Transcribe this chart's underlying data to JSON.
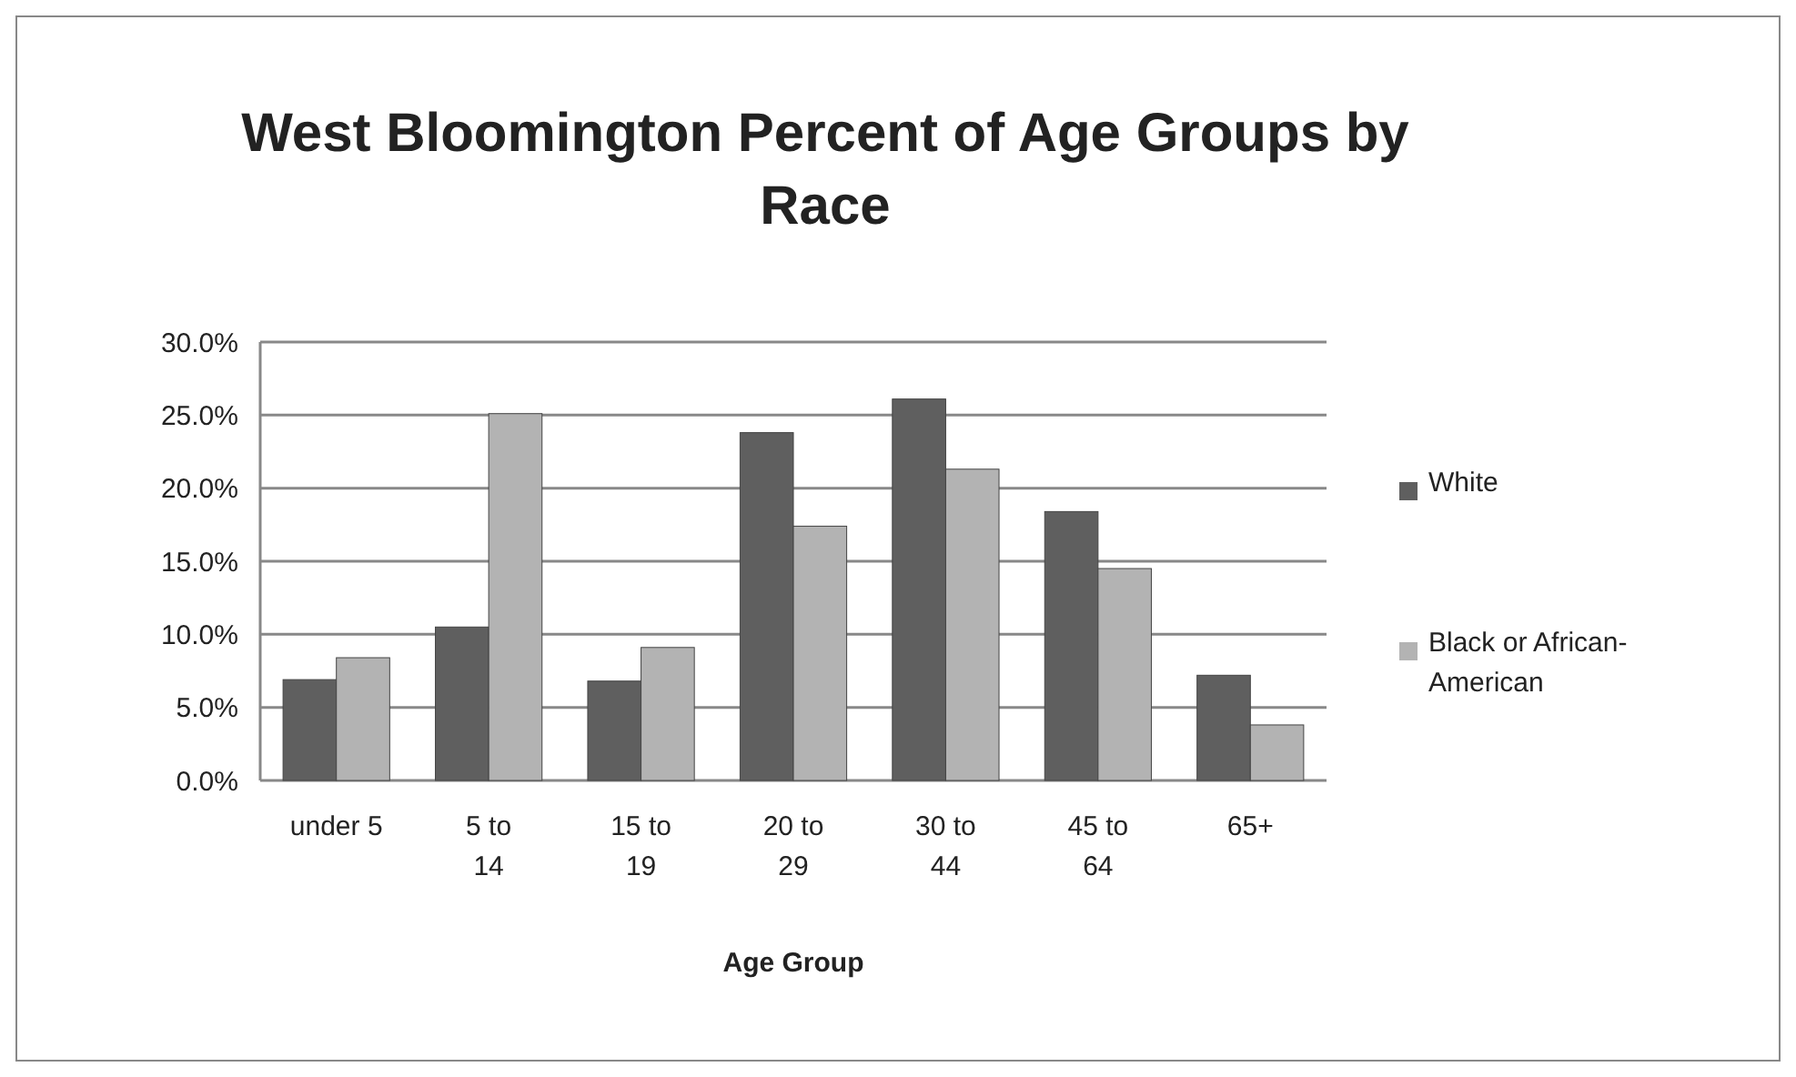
{
  "chart_data": {
    "type": "bar",
    "title": "West Bloomington Percent of Age Groups by Race",
    "xlabel": "Age Group",
    "categories": [
      "under 5",
      "5 to 14",
      "15 to 19",
      "20 to 29",
      "30 to 44",
      "45 to 64",
      "65+"
    ],
    "series": [
      {
        "name": "White",
        "color": "#5f5f5f",
        "values": [
          6.9,
          10.5,
          6.8,
          23.8,
          26.1,
          18.4,
          7.2
        ]
      },
      {
        "name": "Black or African-American",
        "color": "#b3b3b3",
        "values": [
          8.4,
          25.1,
          9.1,
          17.4,
          21.3,
          14.5,
          3.8
        ]
      }
    ],
    "ylim": [
      0,
      30
    ],
    "yticks": [
      {
        "value": 0,
        "label": "0.0%"
      },
      {
        "value": 5,
        "label": "5.0%"
      },
      {
        "value": 10,
        "label": "10.0%"
      },
      {
        "value": 15,
        "label": "15.0%"
      },
      {
        "value": 20,
        "label": "20.0%"
      },
      {
        "value": 25,
        "label": "25.0%"
      },
      {
        "value": 30,
        "label": "30.0%"
      }
    ],
    "grid": "y",
    "legend": "right"
  }
}
